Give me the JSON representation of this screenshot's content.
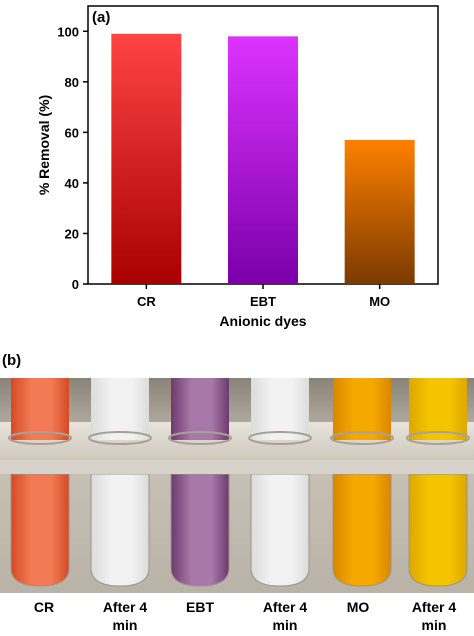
{
  "panel_a_label": "(a)",
  "panel_b_label": "(b)",
  "chart_data": {
    "type": "bar",
    "categories": [
      "CR",
      "EBT",
      "MO"
    ],
    "values": [
      99,
      98,
      57
    ],
    "xlabel": "Anionic dyes",
    "ylabel": "% Removal (%)",
    "ylim": [
      0,
      110
    ],
    "yticks": [
      0,
      20,
      40,
      60,
      80,
      100
    ],
    "grid": false,
    "bar_colors": [
      {
        "top": "#ff4444",
        "bottom": "#a80000"
      },
      {
        "top": "#dd33ff",
        "bottom": "#7a00a8"
      },
      {
        "top": "#ff8000",
        "bottom": "#7a3a00"
      }
    ]
  },
  "photo": {
    "tubes": [
      {
        "color": "#f27a55",
        "dark": "#d44a25"
      },
      {
        "color": "#f2f2f2",
        "dark": "#dcdcdc"
      },
      {
        "color": "#a878a8",
        "dark": "#6e3a6e"
      },
      {
        "color": "#f2f2f2",
        "dark": "#dcdcdc"
      },
      {
        "color": "#f5a800",
        "dark": "#d98700"
      },
      {
        "color": "#f5c400",
        "dark": "#dba800"
      }
    ],
    "captions": [
      {
        "line1": "CR",
        "line2": ""
      },
      {
        "line1": "After 4",
        "line2": "min"
      },
      {
        "line1": "EBT",
        "line2": ""
      },
      {
        "line1": "After 4",
        "line2": "min"
      },
      {
        "line1": "MO",
        "line2": ""
      },
      {
        "line1": "After 4",
        "line2": "min"
      }
    ]
  }
}
